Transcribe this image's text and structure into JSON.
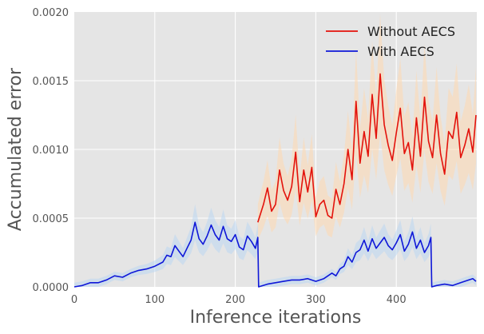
{
  "chart_data": {
    "type": "line",
    "xlabel": "Inference iterations",
    "ylabel": "Accumulated error",
    "xlim": [
      0,
      500
    ],
    "ylim": [
      0,
      0.002
    ],
    "x_ticks": [
      "0",
      "100",
      "200",
      "300",
      "400"
    ],
    "y_ticks": [
      "0.0000",
      "0.0005",
      "0.0010",
      "0.0015",
      "0.0020"
    ],
    "grid": true,
    "legend_position": "top-right",
    "colors": {
      "plot_bg": "#e5e5e5",
      "grid": "#ffffff",
      "text": "#555555"
    },
    "series": [
      {
        "name": "Without AECS",
        "color": "#e3120b",
        "band_color": "#ffd8b0",
        "x": [
          228,
          235,
          240,
          245,
          250,
          255,
          260,
          265,
          270,
          275,
          280,
          285,
          290,
          295,
          300,
          305,
          310,
          315,
          320,
          325,
          330,
          335,
          340,
          345,
          350,
          355,
          360,
          365,
          370,
          375,
          380,
          385,
          390,
          395,
          400,
          405,
          410,
          415,
          420,
          425,
          430,
          435,
          440,
          445,
          450,
          455,
          460,
          465,
          470,
          475,
          480,
          485,
          490,
          495,
          499
        ],
        "values": [
          0.00047,
          0.0006,
          0.00072,
          0.00055,
          0.0006,
          0.00085,
          0.0007,
          0.00063,
          0.00073,
          0.00098,
          0.00062,
          0.00085,
          0.00069,
          0.00087,
          0.00051,
          0.0006,
          0.00063,
          0.00052,
          0.0005,
          0.00071,
          0.0006,
          0.00075,
          0.001,
          0.00078,
          0.00135,
          0.0009,
          0.00113,
          0.00095,
          0.0014,
          0.00108,
          0.00155,
          0.00118,
          0.00103,
          0.00092,
          0.00112,
          0.0013,
          0.00097,
          0.00105,
          0.00085,
          0.00123,
          0.00095,
          0.00138,
          0.00106,
          0.00094,
          0.00125,
          0.00097,
          0.00082,
          0.00113,
          0.00108,
          0.00127,
          0.00094,
          0.00103,
          0.00115,
          0.00098,
          0.00125
        ]
      },
      {
        "name": "With AECS",
        "color": "#0e17d8",
        "band_color": "#bcd7f2",
        "x": [
          0,
          10,
          20,
          30,
          40,
          50,
          60,
          70,
          80,
          90,
          100,
          110,
          115,
          120,
          125,
          130,
          135,
          140,
          145,
          150,
          155,
          160,
          165,
          170,
          175,
          180,
          185,
          190,
          195,
          200,
          205,
          210,
          215,
          220,
          225,
          228,
          229,
          240,
          250,
          260,
          270,
          280,
          290,
          300,
          310,
          320,
          325,
          330,
          335,
          340,
          345,
          350,
          355,
          360,
          365,
          370,
          375,
          380,
          385,
          390,
          395,
          400,
          405,
          410,
          415,
          420,
          425,
          430,
          435,
          440,
          443,
          444,
          450,
          460,
          470,
          480,
          490,
          495,
          499
        ],
        "values": [
          0.0,
          1e-05,
          3e-05,
          3e-05,
          5e-05,
          8e-05,
          7e-05,
          0.0001,
          0.00012,
          0.00013,
          0.00015,
          0.00018,
          0.00023,
          0.00022,
          0.0003,
          0.00026,
          0.00022,
          0.00028,
          0.00034,
          0.00047,
          0.00035,
          0.00031,
          0.00037,
          0.00045,
          0.00038,
          0.00034,
          0.00044,
          0.00035,
          0.00033,
          0.00038,
          0.00029,
          0.00027,
          0.00037,
          0.00033,
          0.00028,
          0.00036,
          0.0,
          2e-05,
          3e-05,
          4e-05,
          5e-05,
          5e-05,
          6e-05,
          4e-05,
          6e-05,
          0.0001,
          8e-05,
          0.00013,
          0.00015,
          0.00022,
          0.00018,
          0.00025,
          0.00027,
          0.00034,
          0.00026,
          0.00035,
          0.00028,
          0.00032,
          0.00036,
          0.0003,
          0.00027,
          0.00032,
          0.00038,
          0.00026,
          0.00031,
          0.0004,
          0.00028,
          0.00034,
          0.00025,
          0.0003,
          0.00036,
          0.0,
          1e-05,
          2e-05,
          1e-05,
          3e-05,
          5e-05,
          6e-05,
          4e-05
        ]
      }
    ]
  }
}
